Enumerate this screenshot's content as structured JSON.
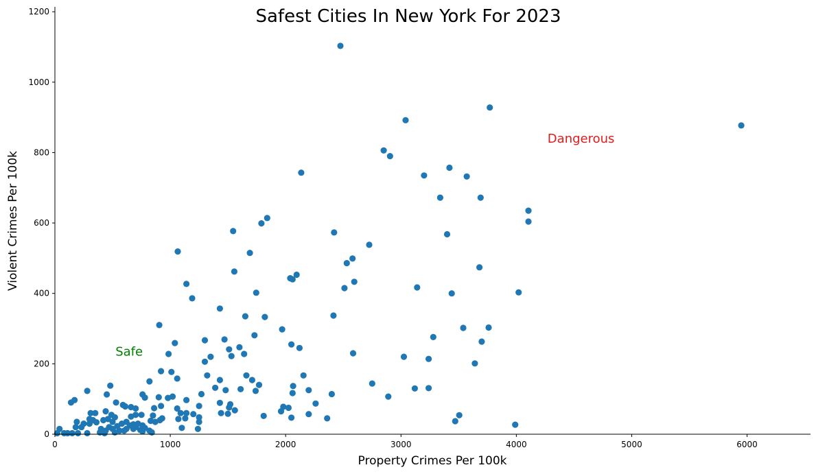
{
  "chart_data": {
    "type": "scatter",
    "title": "Safest Cities In New York For 2023",
    "xlabel": "Property Crimes Per 100k",
    "ylabel": "Violent Crimes Per 100k",
    "xlim": [
      0,
      6550
    ],
    "ylim": [
      0,
      1210
    ],
    "xticks": [
      0,
      1000,
      2000,
      3000,
      4000,
      5000,
      6000
    ],
    "yticks": [
      0,
      200,
      400,
      600,
      800,
      1000,
      1200
    ],
    "grid": false,
    "point_color": "#1f77b4",
    "annotations": [
      {
        "text": "Safe",
        "x": 525,
        "y": 237,
        "color": "#008000"
      },
      {
        "text": "Dangerous",
        "x": 4270,
        "y": 842,
        "color": "#e31a1c"
      }
    ],
    "points": [
      [
        2475,
        1103
      ],
      [
        3770,
        928
      ],
      [
        3040,
        892
      ],
      [
        5950,
        877
      ],
      [
        2850,
        806
      ],
      [
        2905,
        790
      ],
      [
        2135,
        743
      ],
      [
        3420,
        757
      ],
      [
        3200,
        735
      ],
      [
        3570,
        732
      ],
      [
        3340,
        672
      ],
      [
        3690,
        672
      ],
      [
        4105,
        635
      ],
      [
        4105,
        604
      ],
      [
        1840,
        614
      ],
      [
        1790,
        599
      ],
      [
        1545,
        577
      ],
      [
        2420,
        573
      ],
      [
        3400,
        568
      ],
      [
        2725,
        538
      ],
      [
        1065,
        519
      ],
      [
        1690,
        515
      ],
      [
        2580,
        499
      ],
      [
        2530,
        486
      ],
      [
        3680,
        474
      ],
      [
        1555,
        462
      ],
      [
        2095,
        453
      ],
      [
        2040,
        443
      ],
      [
        2060,
        440
      ],
      [
        2595,
        433
      ],
      [
        1140,
        427
      ],
      [
        2510,
        415
      ],
      [
        3140,
        417
      ],
      [
        1745,
        402
      ],
      [
        3440,
        400
      ],
      [
        4020,
        403
      ],
      [
        1190,
        386
      ],
      [
        1430,
        357
      ],
      [
        1650,
        335
      ],
      [
        1820,
        333
      ],
      [
        2415,
        337
      ],
      [
        905,
        310
      ],
      [
        3540,
        302
      ],
      [
        3760,
        303
      ],
      [
        1970,
        298
      ],
      [
        1730,
        281
      ],
      [
        3280,
        276
      ],
      [
        1300,
        267
      ],
      [
        1470,
        269
      ],
      [
        1040,
        259
      ],
      [
        2050,
        255
      ],
      [
        3700,
        263
      ],
      [
        1600,
        247
      ],
      [
        2120,
        245
      ],
      [
        1510,
        241
      ],
      [
        985,
        228
      ],
      [
        1640,
        228
      ],
      [
        1350,
        220
      ],
      [
        1530,
        222
      ],
      [
        1300,
        206
      ],
      [
        2585,
        230
      ],
      [
        3025,
        220
      ],
      [
        3240,
        214
      ],
      [
        3640,
        201
      ],
      [
        920,
        179
      ],
      [
        1010,
        177
      ],
      [
        1060,
        158
      ],
      [
        1320,
        167
      ],
      [
        1430,
        154
      ],
      [
        1660,
        167
      ],
      [
        1710,
        154
      ],
      [
        2155,
        167
      ],
      [
        820,
        150
      ],
      [
        1770,
        140
      ],
      [
        2065,
        137
      ],
      [
        2750,
        144
      ],
      [
        480,
        138
      ],
      [
        1390,
        132
      ],
      [
        1610,
        128
      ],
      [
        1740,
        123
      ],
      [
        1480,
        125
      ],
      [
        3240,
        131
      ],
      [
        3120,
        130
      ],
      [
        280,
        123
      ],
      [
        450,
        113
      ],
      [
        760,
        113
      ],
      [
        780,
        104
      ],
      [
        1270,
        114
      ],
      [
        2060,
        117
      ],
      [
        2200,
        125
      ],
      [
        2400,
        114
      ],
      [
        900,
        105
      ],
      [
        980,
        103
      ],
      [
        1020,
        107
      ],
      [
        1140,
        97
      ],
      [
        1430,
        89
      ],
      [
        1520,
        85
      ],
      [
        2260,
        87
      ],
      [
        2890,
        107
      ],
      [
        530,
        90
      ],
      [
        140,
        90
      ],
      [
        170,
        97
      ],
      [
        590,
        83
      ],
      [
        610,
        79
      ],
      [
        660,
        77
      ],
      [
        700,
        73
      ],
      [
        860,
        74
      ],
      [
        920,
        80
      ],
      [
        1060,
        73
      ],
      [
        1250,
        80
      ],
      [
        1510,
        76
      ],
      [
        1560,
        68
      ],
      [
        1980,
        78
      ],
      [
        2025,
        75
      ],
      [
        1960,
        65
      ],
      [
        2200,
        57
      ],
      [
        1810,
        52
      ],
      [
        2360,
        45
      ],
      [
        2050,
        47
      ],
      [
        3505,
        54
      ],
      [
        3470,
        37
      ],
      [
        3990,
        27
      ],
      [
        1440,
        60
      ],
      [
        1500,
        58
      ],
      [
        1090,
        60
      ],
      [
        1140,
        60
      ],
      [
        1200,
        57
      ],
      [
        1250,
        48
      ],
      [
        1070,
        43
      ],
      [
        1130,
        45
      ],
      [
        930,
        45
      ],
      [
        850,
        53
      ],
      [
        700,
        55
      ],
      [
        750,
        55
      ],
      [
        660,
        50
      ],
      [
        440,
        65
      ],
      [
        490,
        55
      ],
      [
        520,
        48
      ],
      [
        310,
        60
      ],
      [
        350,
        60
      ],
      [
        300,
        43
      ],
      [
        330,
        40
      ],
      [
        300,
        30
      ],
      [
        360,
        34
      ],
      [
        250,
        30
      ],
      [
        190,
        35
      ],
      [
        180,
        20
      ],
      [
        230,
        20
      ],
      [
        420,
        40
      ],
      [
        460,
        43
      ],
      [
        500,
        35
      ],
      [
        580,
        30
      ],
      [
        620,
        35
      ],
      [
        680,
        28
      ],
      [
        720,
        30
      ],
      [
        760,
        25
      ],
      [
        830,
        38
      ],
      [
        870,
        35
      ],
      [
        910,
        40
      ],
      [
        650,
        25
      ],
      [
        540,
        23
      ],
      [
        470,
        20
      ],
      [
        400,
        15
      ],
      [
        440,
        10
      ],
      [
        390,
        5
      ],
      [
        500,
        15
      ],
      [
        560,
        10
      ],
      [
        620,
        15
      ],
      [
        700,
        20
      ],
      [
        740,
        12
      ],
      [
        780,
        18
      ],
      [
        820,
        10
      ],
      [
        840,
        5
      ],
      [
        1100,
        18
      ],
      [
        1240,
        15
      ],
      [
        1250,
        35
      ],
      [
        40,
        15
      ],
      [
        20,
        3
      ],
      [
        80,
        3
      ],
      [
        110,
        3
      ],
      [
        150,
        3
      ],
      [
        200,
        3
      ],
      [
        280,
        3
      ],
      [
        430,
        3
      ],
      [
        520,
        5
      ],
      [
        600,
        10
      ],
      [
        680,
        15
      ],
      [
        760,
        8
      ]
    ]
  }
}
